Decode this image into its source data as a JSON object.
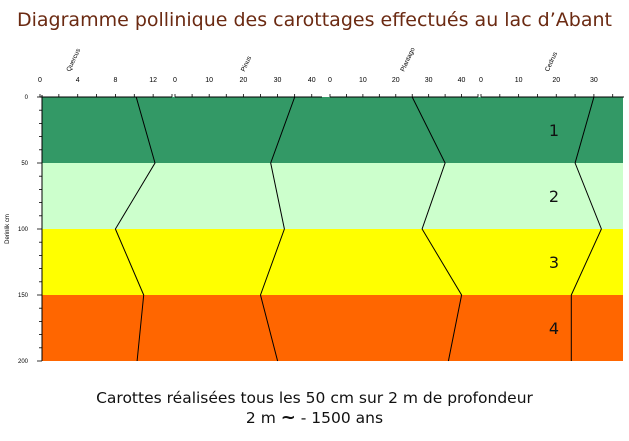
{
  "page": {
    "title": "Diagramme pollinique des carottages effectués au lac d’Abant",
    "caption_line1": "Carottes réalisées tous les 50 cm sur 2 m de profondeur",
    "caption_line2_prefix": "2 m",
    "caption_tilde": "~",
    "caption_line2_suffix": " - 1500 ans"
  },
  "chart_data": {
    "type": "line",
    "title": "Diagramme pollinique des carottages effectués au lac d’Abant",
    "ylabel": "Derinlik cm",
    "y_ticks": [
      0,
      50,
      100,
      150,
      200
    ],
    "ylim": [
      0,
      200
    ],
    "y_inverted": true,
    "zones": [
      {
        "label": "1",
        "from": 0,
        "to": 50,
        "color": "#339966"
      },
      {
        "label": "2",
        "from": 50,
        "to": 100,
        "color": "#ccffcc"
      },
      {
        "label": "3",
        "from": 100,
        "to": 150,
        "color": "#ffff00"
      },
      {
        "label": "4",
        "from": 150,
        "to": 200,
        "color": "#ff6600"
      }
    ],
    "series": [
      {
        "name": "Quercus",
        "xlim": [
          0,
          14
        ],
        "x_ticks": [
          0,
          4,
          8,
          12
        ],
        "depth": [
          0,
          50,
          100,
          150,
          200
        ],
        "values": [
          10.2,
          12.2,
          8,
          11,
          10.3
        ]
      },
      {
        "name": "Pinus",
        "xlim": [
          0,
          43
        ],
        "x_ticks": [
          0,
          10,
          20,
          30,
          40
        ],
        "depth": [
          0,
          50,
          100,
          150,
          200
        ],
        "values": [
          35,
          28,
          32,
          25,
          30
        ]
      },
      {
        "name": "Plantago",
        "xlim": [
          0,
          45
        ],
        "x_ticks": [
          0,
          10,
          20,
          30,
          40
        ],
        "depth": [
          0,
          50,
          100,
          150,
          200
        ],
        "values": [
          25,
          35,
          28,
          40,
          36
        ]
      },
      {
        "name": "Cedrus",
        "xlim": [
          0,
          38
        ],
        "x_ticks": [
          0,
          10,
          20,
          30
        ],
        "depth": [
          0,
          50,
          100,
          150,
          200
        ],
        "values": [
          30,
          25,
          32,
          24,
          24
        ]
      }
    ]
  }
}
